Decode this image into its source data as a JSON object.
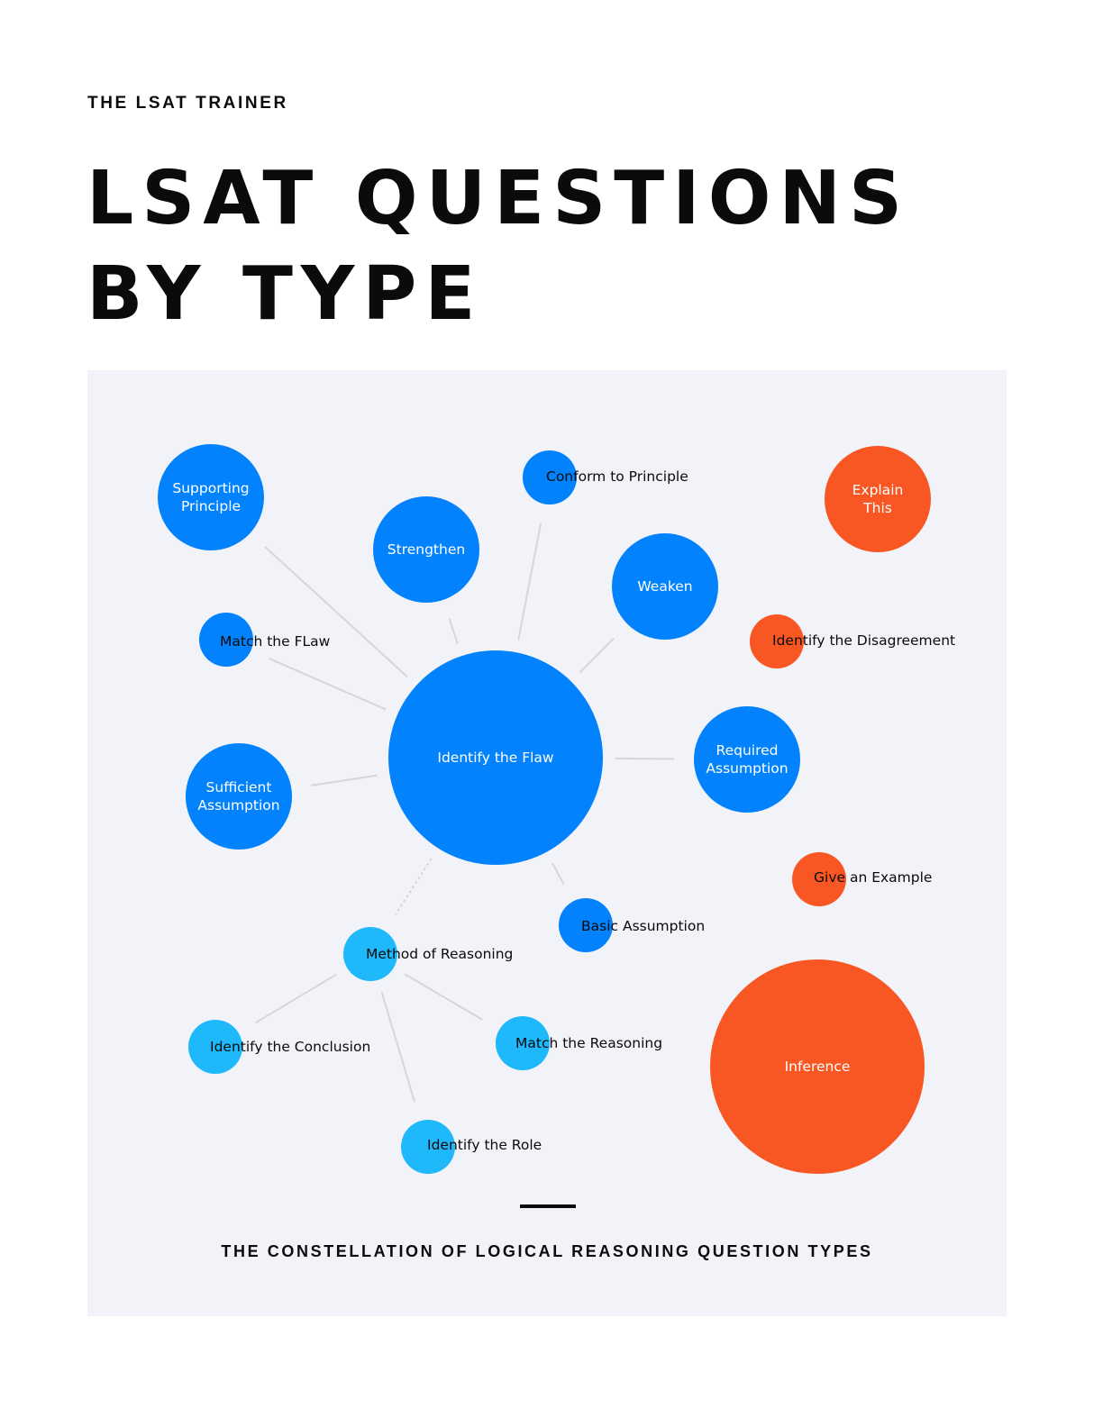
{
  "header": {
    "kicker": "THE LSAT TRAINER",
    "title_lines": [
      "LSAT QUESTIONS",
      "BY TYPE"
    ]
  },
  "colors": {
    "background": "#ffffff",
    "panel": "#f2f3f8",
    "primary_blue": "#0282fc",
    "light_blue": "#1fb8fb",
    "orange": "#f85622",
    "connector": "#d5d6dc",
    "text_dark": "#0b0b0b",
    "text_light": "#ffffff"
  },
  "diagram": {
    "caption": "THE CONSTELLATION OF LOGICAL REASONING QUESTION TYPES",
    "nodes": [
      {
        "id": "identify-the-flaw",
        "label": "Identify the Flaw",
        "group": "primary"
      },
      {
        "id": "supporting-principle",
        "label": "Supporting Principle",
        "group": "primary"
      },
      {
        "id": "strengthen",
        "label": "Strengthen",
        "group": "primary"
      },
      {
        "id": "conform-to-principle",
        "label": "Conform to Principle",
        "group": "primary"
      },
      {
        "id": "weaken",
        "label": "Weaken",
        "group": "primary"
      },
      {
        "id": "match-the-flaw",
        "label": "Match the FLaw",
        "group": "primary"
      },
      {
        "id": "sufficient-assumption",
        "label": "Sufficient Assumption",
        "group": "primary"
      },
      {
        "id": "required-assumption",
        "label": "Required Assumption",
        "group": "primary"
      },
      {
        "id": "basic-assumption",
        "label": "Basic Assumption",
        "group": "primary"
      },
      {
        "id": "method-of-reasoning",
        "label": "Method of Reasoning",
        "group": "secondary"
      },
      {
        "id": "identify-the-conclusion",
        "label": "Identify the Conclusion",
        "group": "secondary"
      },
      {
        "id": "match-the-reasoning",
        "label": "Match the Reasoning",
        "group": "secondary"
      },
      {
        "id": "identify-the-role",
        "label": "Identify the Role",
        "group": "secondary"
      },
      {
        "id": "explain-this",
        "label": "Explain This",
        "group": "tertiary"
      },
      {
        "id": "identify-the-disagreement",
        "label": "Identify the Disagreement",
        "group": "tertiary"
      },
      {
        "id": "give-an-example",
        "label": "Give an Example",
        "group": "tertiary"
      },
      {
        "id": "inference",
        "label": "Inference",
        "group": "tertiary"
      }
    ],
    "edges": [
      {
        "from": "identify-the-flaw",
        "to": "supporting-principle",
        "style": "solid"
      },
      {
        "from": "identify-the-flaw",
        "to": "strengthen",
        "style": "solid"
      },
      {
        "from": "identify-the-flaw",
        "to": "conform-to-principle",
        "style": "solid"
      },
      {
        "from": "identify-the-flaw",
        "to": "weaken",
        "style": "solid"
      },
      {
        "from": "identify-the-flaw",
        "to": "match-the-flaw",
        "style": "solid"
      },
      {
        "from": "identify-the-flaw",
        "to": "sufficient-assumption",
        "style": "solid"
      },
      {
        "from": "identify-the-flaw",
        "to": "required-assumption",
        "style": "solid"
      },
      {
        "from": "identify-the-flaw",
        "to": "basic-assumption",
        "style": "solid"
      },
      {
        "from": "identify-the-flaw",
        "to": "method-of-reasoning",
        "style": "dotted"
      },
      {
        "from": "method-of-reasoning",
        "to": "identify-the-conclusion",
        "style": "solid"
      },
      {
        "from": "method-of-reasoning",
        "to": "match-the-reasoning",
        "style": "solid"
      },
      {
        "from": "method-of-reasoning",
        "to": "identify-the-role",
        "style": "solid"
      }
    ]
  }
}
